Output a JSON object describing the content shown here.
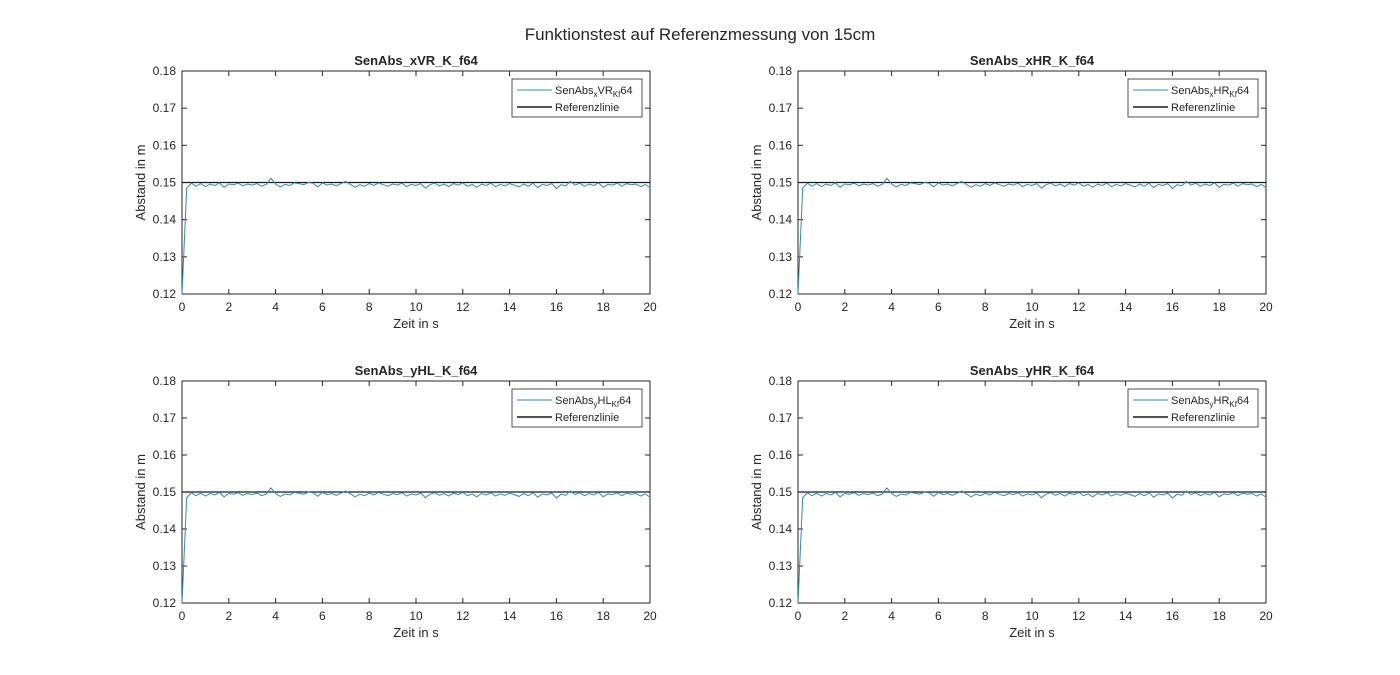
{
  "figure_title": "Funktionstest auf Referenzmessung von 15cm",
  "chart_data": [
    {
      "type": "line",
      "title": "SenAbs_xVR_K_f64",
      "xlabel": "Zeit in s",
      "ylabel": "Abstand in m",
      "xlim": [
        0,
        20
      ],
      "ylim": [
        0.12,
        0.18
      ],
      "xticks": [
        "0",
        "2",
        "4",
        "6",
        "8",
        "10",
        "12",
        "14",
        "16",
        "18",
        "20"
      ],
      "yticks": [
        "0.12",
        "0.13",
        "0.14",
        "0.15",
        "0.16",
        "0.17",
        "0.18"
      ],
      "grid": false,
      "legend_position": "top-right",
      "series": [
        {
          "name_parts": [
            "SenAbs",
            "x",
            "VR",
            "Kf",
            "64"
          ],
          "color": "#2f8bb5",
          "x_step": 0.2,
          "values": "signal"
        },
        {
          "name_parts": [
            "Referenzlinie"
          ],
          "color": "#1a1a1a",
          "constant": 0.15
        }
      ]
    },
    {
      "type": "line",
      "title": "SenAbs_xHR_K_f64",
      "xlabel": "Zeit in s",
      "ylabel": "Abstand in m",
      "xlim": [
        0,
        20
      ],
      "ylim": [
        0.12,
        0.18
      ],
      "xticks": [
        "0",
        "2",
        "4",
        "6",
        "8",
        "10",
        "12",
        "14",
        "16",
        "18",
        "20"
      ],
      "yticks": [
        "0.12",
        "0.13",
        "0.14",
        "0.15",
        "0.16",
        "0.17",
        "0.18"
      ],
      "grid": false,
      "legend_position": "top-right",
      "series": [
        {
          "name_parts": [
            "SenAbs",
            "x",
            "HR",
            "Kf",
            "64"
          ],
          "color": "#2f8bb5",
          "x_step": 0.2,
          "values": "signal"
        },
        {
          "name_parts": [
            "Referenzlinie"
          ],
          "color": "#1a1a1a",
          "constant": 0.15
        }
      ]
    },
    {
      "type": "line",
      "title": "SenAbs_yHL_K_f64",
      "xlabel": "Zeit in s",
      "ylabel": "Abstand in m",
      "xlim": [
        0,
        20
      ],
      "ylim": [
        0.12,
        0.18
      ],
      "xticks": [
        "0",
        "2",
        "4",
        "6",
        "8",
        "10",
        "12",
        "14",
        "16",
        "18",
        "20"
      ],
      "yticks": [
        "0.12",
        "0.13",
        "0.14",
        "0.15",
        "0.16",
        "0.17",
        "0.18"
      ],
      "grid": false,
      "legend_position": "top-right",
      "series": [
        {
          "name_parts": [
            "SenAbs",
            "y",
            "HL",
            "Kf",
            "64"
          ],
          "color": "#2f8bb5",
          "x_step": 0.2,
          "values": "signal"
        },
        {
          "name_parts": [
            "Referenzlinie"
          ],
          "color": "#1a1a1a",
          "constant": 0.15
        }
      ]
    },
    {
      "type": "line",
      "title": "SenAbs_yHR_K_f64",
      "xlabel": "Zeit in s",
      "ylabel": "Abstand in m",
      "xlim": [
        0,
        20
      ],
      "ylim": [
        0.12,
        0.18
      ],
      "xticks": [
        "0",
        "2",
        "4",
        "6",
        "8",
        "10",
        "12",
        "14",
        "16",
        "18",
        "20"
      ],
      "yticks": [
        "0.12",
        "0.13",
        "0.14",
        "0.15",
        "0.16",
        "0.17",
        "0.18"
      ],
      "grid": false,
      "legend_position": "top-right",
      "series": [
        {
          "name_parts": [
            "SenAbs",
            "y",
            "HR",
            "Kf",
            "64"
          ],
          "color": "#2f8bb5",
          "x_step": 0.2,
          "values": "signal"
        },
        {
          "name_parts": [
            "Referenzlinie"
          ],
          "color": "#1a1a1a",
          "constant": 0.15
        }
      ]
    }
  ],
  "signal": [
    0.12,
    0.1485,
    0.1498,
    0.149,
    0.1497,
    0.1489,
    0.1496,
    0.1492,
    0.1499,
    0.1487,
    0.1496,
    0.1494,
    0.1498,
    0.1491,
    0.1496,
    0.1493,
    0.1497,
    0.149,
    0.1495,
    0.1511,
    0.1496,
    0.1488,
    0.1495,
    0.1492,
    0.1499,
    0.1497,
    0.1494,
    0.15,
    0.1498,
    0.1488,
    0.1499,
    0.1493,
    0.1496,
    0.1491,
    0.1497,
    0.1503,
    0.1495,
    0.1487,
    0.1494,
    0.149,
    0.1497,
    0.1492,
    0.1499,
    0.1494,
    0.149,
    0.1496,
    0.1493,
    0.1498,
    0.1489,
    0.1495,
    0.1492,
    0.1497,
    0.1485,
    0.1494,
    0.1498,
    0.1491,
    0.1496,
    0.1489,
    0.1497,
    0.1493,
    0.1499,
    0.149,
    0.1495,
    0.1487,
    0.1496,
    0.1492,
    0.1498,
    0.1489,
    0.1495,
    0.1491,
    0.1497,
    0.1493,
    0.1488,
    0.1496,
    0.149,
    0.1498,
    0.1486,
    0.1495,
    0.1492,
    0.1497,
    0.1484,
    0.1494,
    0.1491,
    0.1503,
    0.1493,
    0.1498,
    0.149,
    0.1496,
    0.1492,
    0.1499,
    0.1487,
    0.1495,
    0.1493,
    0.1498,
    0.149,
    0.1497,
    0.1494,
    0.1496,
    0.1489,
    0.1495,
    0.1486
  ]
}
